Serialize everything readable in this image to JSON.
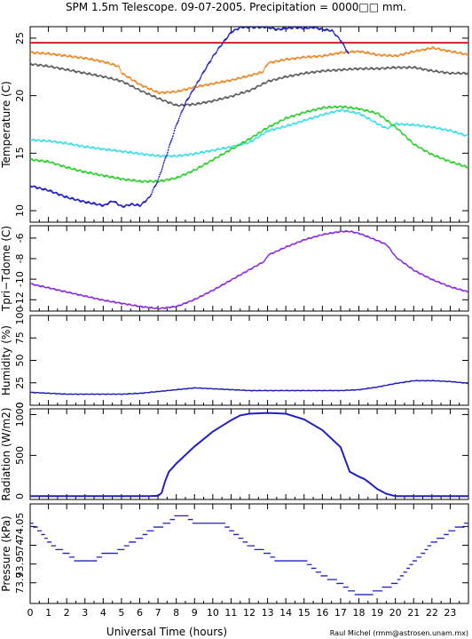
{
  "header": {
    "title": "SPM 1.5m Telescope. 09-07-2005. Precipitation = 0000□□ mm."
  },
  "footer": {
    "xlabel": "Universal Time (hours)",
    "credit": "Raul Michel (rmm@astrosen.unam.mx)"
  },
  "chart_data": [
    {
      "type": "scatter",
      "ylabel": "Temperature (C)",
      "xlim": [
        0,
        24
      ],
      "ylim": [
        9,
        26
      ],
      "x_ticks": [
        "0",
        "1",
        "2",
        "3",
        "4",
        "5",
        "6",
        "7",
        "8",
        "9",
        "10",
        "11",
        "12",
        "13",
        "14",
        "15",
        "16",
        "17",
        "18",
        "19",
        "20",
        "21",
        "22",
        "23"
      ],
      "y_ticks": [
        10,
        15,
        20,
        25
      ],
      "reference_line": {
        "y": 24.6,
        "color": "#d02020"
      },
      "series": [
        {
          "color": "#ef8a2a",
          "x": [
            0,
            1,
            2,
            3,
            4,
            4.8,
            5,
            6,
            7,
            8,
            9,
            10,
            11,
            12,
            12.7,
            13,
            14,
            15,
            16,
            17,
            18,
            19,
            20,
            21,
            22,
            23,
            24
          ],
          "values": [
            23.8,
            23.7,
            23.5,
            23.3,
            23.0,
            22.6,
            22.0,
            21.0,
            20.3,
            20.4,
            20.8,
            21.1,
            21.4,
            21.8,
            22.1,
            22.9,
            23.2,
            23.4,
            23.5,
            23.8,
            23.9,
            23.6,
            23.5,
            23.9,
            24.2,
            23.9,
            23.6
          ]
        },
        {
          "color": "#606060",
          "x": [
            0,
            1,
            2,
            3,
            4,
            5,
            6,
            7,
            8,
            9,
            10,
            11,
            12,
            13,
            14,
            15,
            16,
            17,
            18,
            19,
            20,
            21,
            22,
            23,
            24
          ],
          "values": [
            22.8,
            22.6,
            22.3,
            22.0,
            21.7,
            21.3,
            20.5,
            19.8,
            19.2,
            19.3,
            19.6,
            20.0,
            20.5,
            21.3,
            21.7,
            22.0,
            22.2,
            22.3,
            22.4,
            22.4,
            22.5,
            22.5,
            22.2,
            22.0,
            22.0
          ]
        },
        {
          "color": "#40e0e8",
          "x": [
            0,
            1,
            2,
            3,
            4,
            5,
            6,
            7,
            8,
            9,
            10,
            11,
            12,
            13,
            14,
            15,
            16,
            17,
            18,
            19,
            19.5,
            20,
            21,
            22,
            23,
            24
          ],
          "values": [
            16.2,
            16.1,
            15.9,
            15.6,
            15.4,
            15.2,
            15.0,
            14.8,
            14.8,
            15.0,
            15.3,
            15.6,
            16.0,
            17.0,
            17.4,
            17.9,
            18.4,
            18.8,
            18.5,
            17.6,
            17.2,
            17.6,
            17.5,
            17.3,
            17.0,
            16.5
          ]
        },
        {
          "color": "#30d030",
          "x": [
            0,
            1,
            2,
            3,
            4,
            5,
            6,
            7,
            8,
            9,
            10,
            11,
            12,
            13,
            14,
            15,
            16,
            17,
            18,
            19,
            20,
            21,
            22,
            23,
            24
          ],
          "values": [
            14.5,
            14.3,
            13.8,
            13.4,
            13.1,
            12.8,
            12.6,
            12.6,
            12.9,
            13.6,
            14.5,
            15.4,
            16.3,
            17.3,
            18.1,
            18.6,
            19.0,
            19.1,
            18.9,
            18.5,
            17.3,
            15.8,
            14.9,
            14.3,
            13.8
          ]
        },
        {
          "color": "#2020c0",
          "x": [
            0,
            1,
            2,
            3,
            4,
            4.5,
            5,
            5.5,
            6,
            6.5,
            7,
            7.5,
            8,
            8.5,
            9,
            9.5,
            10,
            10.5,
            11,
            11.5,
            12,
            12.5,
            13,
            13.5,
            14,
            14.5,
            15,
            15.5,
            16,
            16.5,
            17,
            17.4
          ],
          "values": [
            12.2,
            11.8,
            11.2,
            10.8,
            10.5,
            10.9,
            10.4,
            10.6,
            10.5,
            11.2,
            12.8,
            15.2,
            17.6,
            19.5,
            20.8,
            22.2,
            23.5,
            24.6,
            25.6,
            26.0,
            26.0,
            26.0,
            26.0,
            25.8,
            25.9,
            26.0,
            25.9,
            26.0,
            25.8,
            25.7,
            24.8,
            23.7
          ]
        }
      ]
    },
    {
      "type": "scatter",
      "ylabel": "Tpri−Tdome (C)",
      "xlim": [
        0,
        24
      ],
      "ylim": [
        -13.1,
        -4.8
      ],
      "y_ticks": [
        -12,
        -10,
        -8,
        -6
      ],
      "series": [
        {
          "color": "#8a2be2",
          "x": [
            0,
            1,
            2,
            3,
            4,
            5,
            6,
            7,
            8,
            9,
            10,
            11,
            12,
            12.8,
            13,
            14,
            15,
            16,
            17,
            17.5,
            18,
            19,
            19.5,
            20,
            21,
            22,
            23,
            24
          ],
          "values": [
            -10.4,
            -10.8,
            -11.2,
            -11.6,
            -12.0,
            -12.3,
            -12.6,
            -12.8,
            -12.6,
            -11.9,
            -11.0,
            -10.0,
            -9.0,
            -8.2,
            -7.6,
            -6.8,
            -6.1,
            -5.6,
            -5.3,
            -5.3,
            -5.5,
            -6.2,
            -6.6,
            -7.8,
            -9.1,
            -10.0,
            -10.7,
            -11.2
          ]
        }
      ]
    },
    {
      "type": "scatter",
      "ylabel": "Humidity (%)",
      "xlim": [
        0,
        24
      ],
      "ylim": [
        0,
        100
      ],
      "y_ticks": [
        0,
        25,
        50,
        75,
        100
      ],
      "series": [
        {
          "color": "#2020b0",
          "x": [
            0,
            1,
            2,
            3,
            4,
            5,
            6,
            7,
            8,
            9,
            10,
            11,
            12,
            13,
            14,
            15,
            16,
            17,
            18,
            19,
            20,
            21,
            22,
            23,
            24
          ],
          "values": [
            15,
            14,
            13,
            13,
            13,
            13,
            14,
            16,
            18,
            20,
            19,
            18,
            17,
            17,
            17,
            17,
            17,
            17,
            18,
            21,
            25,
            28,
            28,
            27,
            25
          ]
        }
      ]
    },
    {
      "type": "line",
      "ylabel": "Radiation (W/m2)",
      "xlim": [
        0,
        24
      ],
      "ylim": [
        -40,
        1070
      ],
      "y_ticks": [
        0,
        500,
        1000
      ],
      "series": [
        {
          "color": "#2020c0",
          "x": [
            0,
            6.5,
            7,
            7.2,
            7.4,
            7.6,
            7.8,
            8,
            9,
            10,
            11,
            11.5,
            12,
            13,
            14,
            15,
            16,
            17,
            17.5,
            18,
            18.3,
            18.6,
            19,
            19.5,
            20,
            24
          ],
          "values": [
            0,
            0,
            5,
            40,
            190,
            300,
            350,
            400,
            610,
            790,
            930,
            990,
            1010,
            1020,
            1010,
            940,
            810,
            600,
            300,
            240,
            210,
            160,
            90,
            30,
            0,
            0
          ]
        }
      ]
    },
    {
      "type": "scatter",
      "ylabel": "Pressure (kPa)",
      "xlim": [
        0,
        24
      ],
      "ylim": [
        73.845,
        74.11
      ],
      "y_ticks": [
        73.9,
        73.95,
        74,
        74.05
      ],
      "series": [
        {
          "color": "#2020c0",
          "x": [
            0,
            0.5,
            1,
            1.5,
            2,
            2.5,
            3,
            3.5,
            4,
            4.5,
            5,
            5.5,
            6,
            6.5,
            7,
            7.5,
            8,
            8.5,
            9,
            9.5,
            10,
            10.5,
            11,
            11.5,
            12,
            12.5,
            13,
            13.5,
            14,
            14.5,
            15,
            15.5,
            16,
            16.5,
            17,
            17.5,
            18,
            18.5,
            19,
            19.5,
            20,
            20.5,
            21,
            21.5,
            22,
            22.5,
            23,
            23.5,
            24
          ],
          "values": [
            74.06,
            74.04,
            74.01,
            73.99,
            73.98,
            73.96,
            73.96,
            73.96,
            73.98,
            73.98,
            73.99,
            74.01,
            74.02,
            74.04,
            74.05,
            74.06,
            74.08,
            74.08,
            74.06,
            74.06,
            74.06,
            74.06,
            74.04,
            74.02,
            74.0,
            73.99,
            73.98,
            73.96,
            73.96,
            73.96,
            73.96,
            73.94,
            73.92,
            73.91,
            73.9,
            73.88,
            73.87,
            73.87,
            73.88,
            73.89,
            73.9,
            73.93,
            73.96,
            73.98,
            74.01,
            74.02,
            74.04,
            74.05,
            74.06
          ]
        }
      ]
    }
  ]
}
